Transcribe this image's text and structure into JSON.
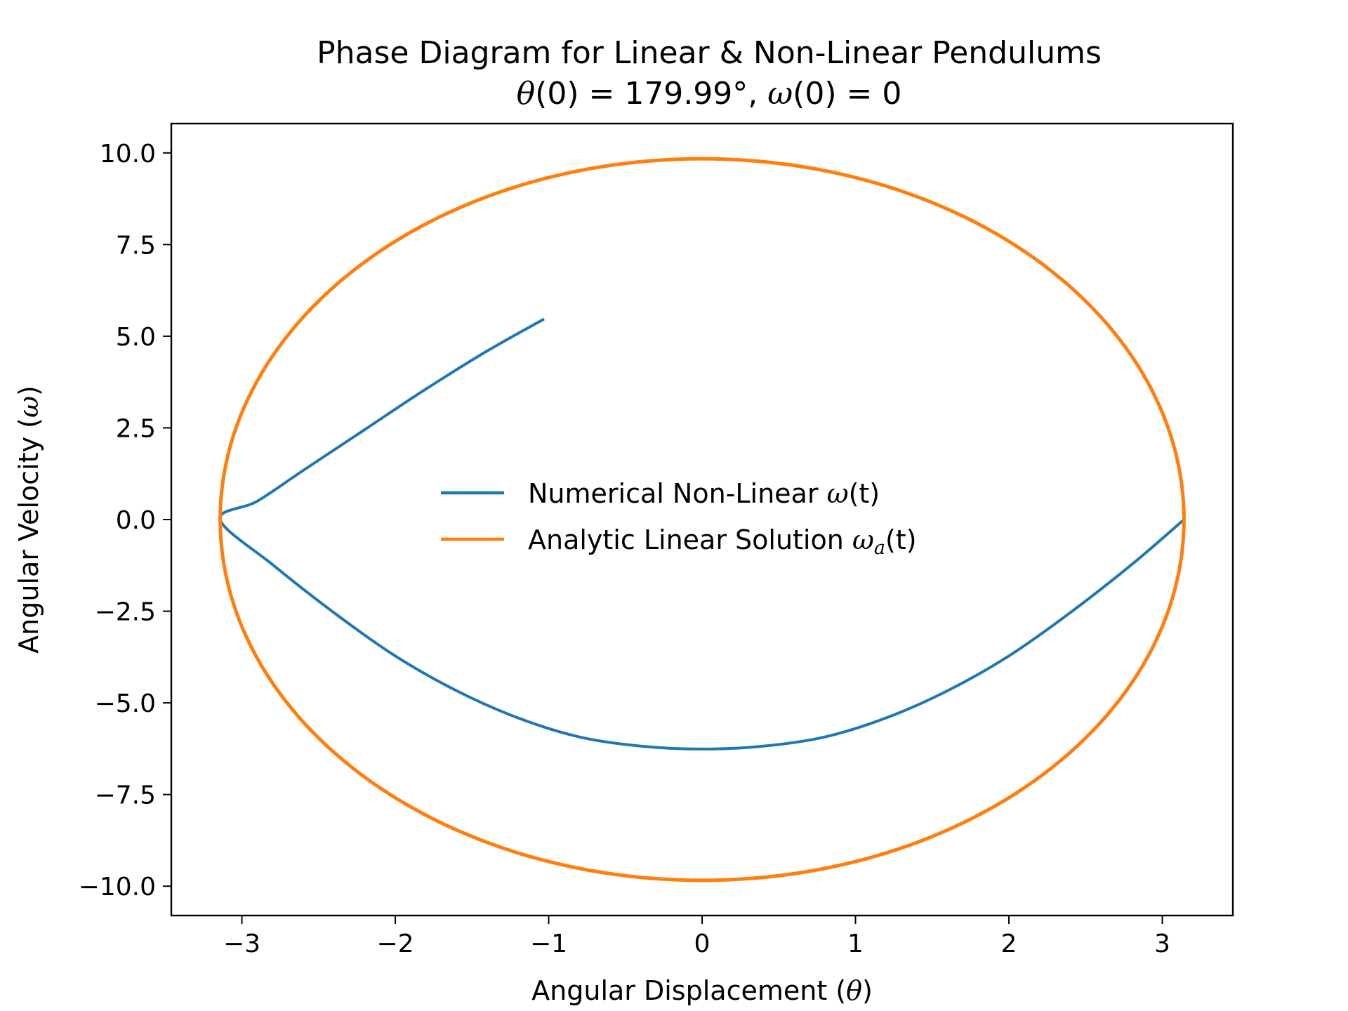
{
  "chart_data": {
    "type": "line",
    "title": "Phase Diagram for Linear & Non-Linear Pendulums",
    "subtitle": "θ(0) = 179.99°, ω(0) = 0",
    "xlabel": "Angular Displacement (θ)",
    "ylabel": "Angular Velocity (ω)",
    "xlim": [
      -3.46,
      3.46
    ],
    "ylim": [
      -10.8,
      10.8
    ],
    "x_ticks": [
      -3,
      -2,
      -1,
      0,
      1,
      2,
      3
    ],
    "x_tick_labels": [
      "−3",
      "−2",
      "−1",
      "0",
      "1",
      "2",
      "3"
    ],
    "y_ticks": [
      10.0,
      7.5,
      5.0,
      2.5,
      0.0,
      -2.5,
      -5.0,
      -7.5,
      -10.0
    ],
    "y_tick_labels": [
      "10.0",
      "7.5",
      "5.0",
      "2.5",
      "0.0",
      "−2.5",
      "−5.0",
      "−7.5",
      "−10.0"
    ],
    "grid": false,
    "legend_position": "center",
    "series": [
      {
        "name": "Numerical Non-Linear  ω(t)",
        "color": "#1f77b4",
        "x": [
          -1.03,
          -1.4,
          -1.8,
          -2.2,
          -2.6,
          -2.9,
          -3.1416,
          -2.8,
          -2.4,
          -2.0,
          -1.6,
          -1.2,
          -0.8,
          -0.4,
          0.0,
          0.4,
          0.8,
          1.2,
          1.6,
          2.0,
          2.4,
          2.8,
          3.1416
        ],
        "y": [
          5.47,
          4.6,
          3.56,
          2.45,
          1.34,
          0.5,
          0.0,
          -1.23,
          -2.54,
          -3.72,
          -4.67,
          -5.41,
          -5.93,
          -6.18,
          -6.26,
          -6.18,
          -5.93,
          -5.41,
          -4.67,
          -3.72,
          -2.54,
          -1.23,
          0.0
        ]
      },
      {
        "name": "Analytic Linear Solution ωa(t)",
        "color": "#ff7f0e",
        "shape": "ellipse",
        "amplitude_theta": 3.1414,
        "amplitude_omega": 9.84
      }
    ]
  },
  "legend": {
    "numerical_name": "Numerical Non-Linear  ",
    "numerical_math": "ω",
    "numerical_arg": "(t)",
    "analytic_name": "Analytic Linear Solution ",
    "analytic_math": "ω",
    "analytic_sub": "a",
    "analytic_arg": "(t)"
  },
  "title_parts": {
    "line1": "Phase Diagram for Linear & Non-Linear Pendulums",
    "theta": "θ",
    "arg0": "(0) = 179.99°, ",
    "omega": "ω",
    "arg1": "(0) = 0"
  },
  "axis_label_parts": {
    "x_text": "Angular Displacement (",
    "x_math": "θ",
    "x_close": ")",
    "y_text": "Angular Velocity (",
    "y_math": "ω",
    "y_close": ")"
  }
}
